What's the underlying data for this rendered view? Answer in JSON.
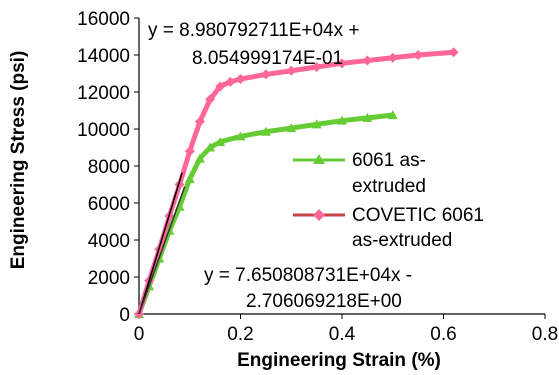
{
  "chart_data": {
    "type": "line",
    "xlabel": "Engineering Strain (%)",
    "ylabel": "Engineering Stress (psi)",
    "xlim": [
      0,
      0.8
    ],
    "ylim": [
      0,
      16000
    ],
    "x_ticks": [
      "0",
      "0.2",
      "0.4",
      "0.6",
      "0.8"
    ],
    "y_ticks": [
      "0",
      "2000",
      "4000",
      "6000",
      "8000",
      "10000",
      "12000",
      "14000",
      "16000"
    ],
    "grid": false,
    "legend_position": "right",
    "series": [
      {
        "name": "6061 as-extruded",
        "color": "#66cc33",
        "marker": "triangle",
        "x": [
          0,
          0.02,
          0.04,
          0.06,
          0.08,
          0.1,
          0.12,
          0.14,
          0.16,
          0.2,
          0.25,
          0.3,
          0.35,
          0.4,
          0.45,
          0.5
        ],
        "y": [
          0,
          1500,
          3000,
          4500,
          5800,
          7300,
          8400,
          9000,
          9300,
          9600,
          9850,
          10050,
          10250,
          10450,
          10600,
          10750
        ]
      },
      {
        "name": "COVETIC 6061 as-extruded",
        "color": "#ff6699",
        "line_color": "#cc4444",
        "marker": "diamond",
        "x": [
          0,
          0.02,
          0.04,
          0.06,
          0.08,
          0.1,
          0.12,
          0.14,
          0.16,
          0.18,
          0.2,
          0.25,
          0.3,
          0.35,
          0.4,
          0.45,
          0.5,
          0.55,
          0.62
        ],
        "y": [
          0,
          1800,
          3500,
          5300,
          7000,
          8800,
          10400,
          11600,
          12300,
          12550,
          12700,
          12950,
          13150,
          13350,
          13550,
          13700,
          13850,
          14000,
          14150
        ]
      }
    ],
    "trendlines": [
      {
        "slope": 89807.92711,
        "intercept": 0.8054999174,
        "x_range": [
          0,
          0.085
        ],
        "color": "#000000",
        "label_line1": "y = 8.980792711E+04x +",
        "label_line2": "8.054999174E-01"
      },
      {
        "slope": 76508.08731,
        "intercept": -2.706069218,
        "x_range": [
          0,
          0.09
        ],
        "color": "#333333",
        "label_line1": "y = 7.650808731E+04x -",
        "label_line2": "2.706069218E+00"
      }
    ]
  }
}
